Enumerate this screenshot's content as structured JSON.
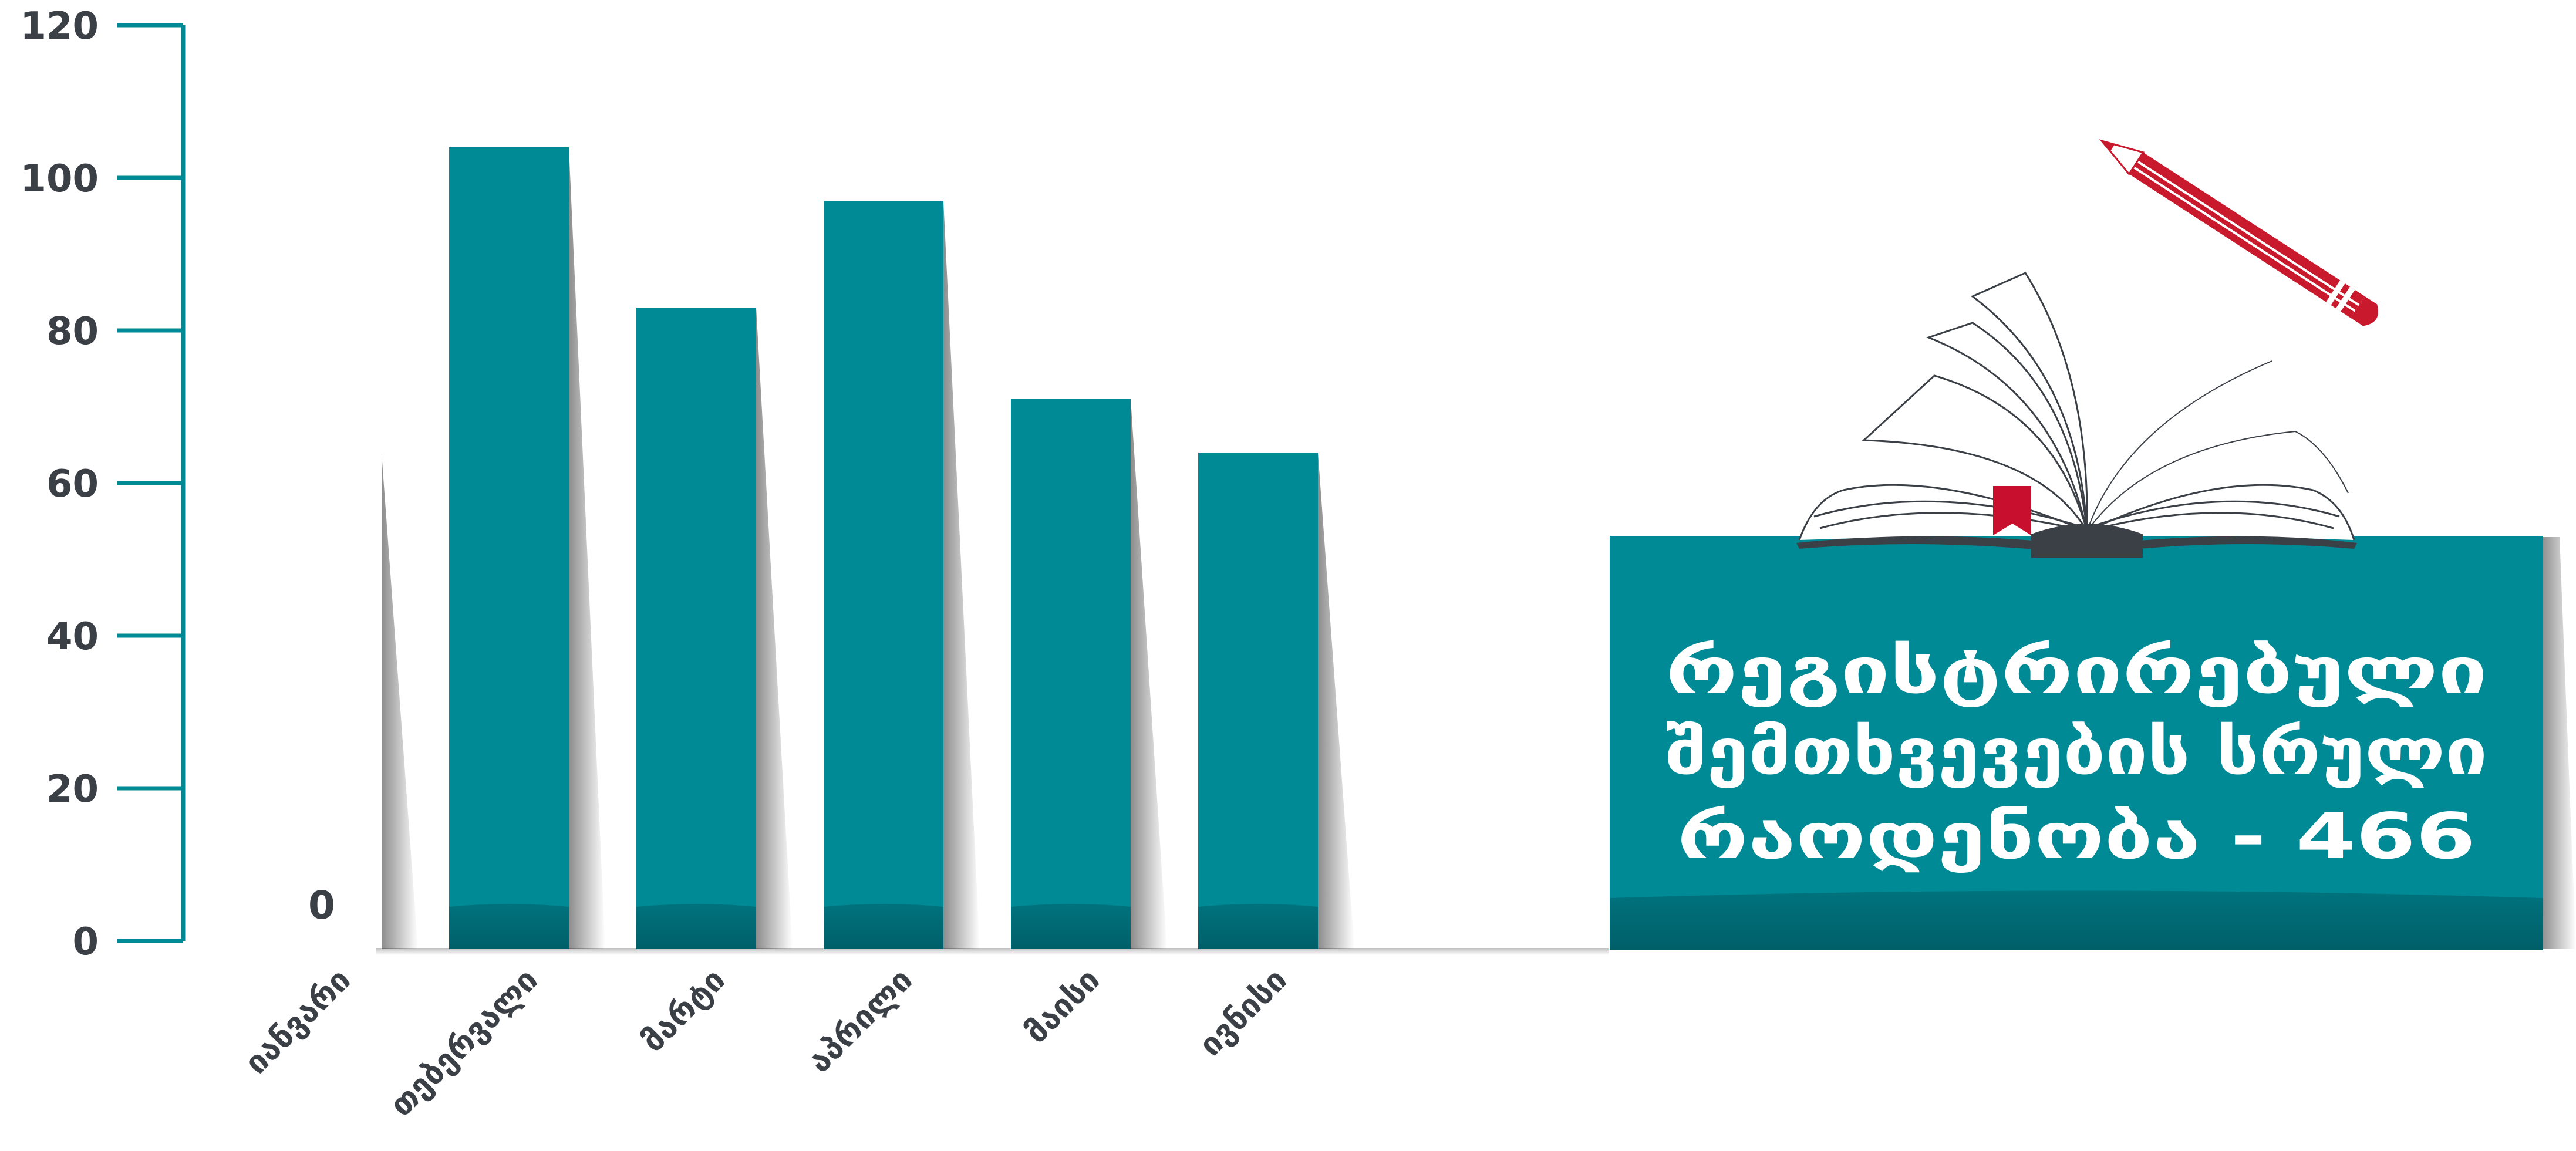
{
  "chart_data": {
    "type": "bar",
    "categories": [
      "იანვარი",
      "თებერვალი",
      "მარტი",
      "აპრილი",
      "მაისი",
      "ივნისი"
    ],
    "values": [
      0,
      104,
      83,
      97,
      71,
      64
    ],
    "data_labels": [
      "0",
      "",
      "",
      "",
      "",
      ""
    ],
    "ylim": [
      0,
      120
    ],
    "yticks": [
      0,
      20,
      40,
      60,
      80,
      100,
      120
    ],
    "grid": false,
    "legend": "none",
    "bar_color": "#008a96",
    "axis_color": "#008a96",
    "text_color": "#3b3f46"
  },
  "info_box": {
    "line1": "რეგისტრირებული",
    "line2": "შემთხვევების სრული",
    "line3": "რაოდენობა - 466",
    "background": "#008a96",
    "text_color": "#ffffff"
  },
  "decor": {
    "book_icon": "open-book-icon",
    "pencil_icon": "pencil-icon",
    "bookmark_color": "#c8102e",
    "pencil_color": "#c8192d"
  }
}
